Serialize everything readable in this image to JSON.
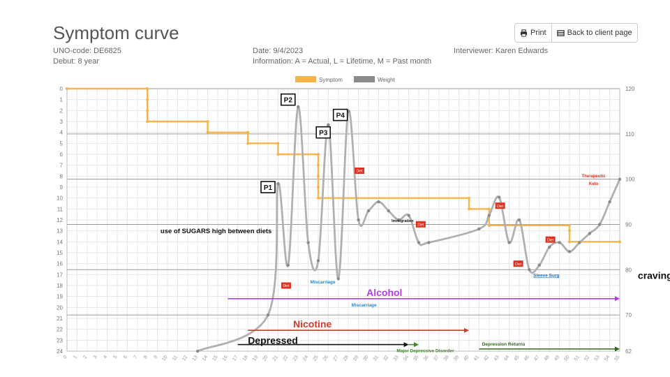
{
  "header": {
    "title": "Symptom curve",
    "uno_code": "UNO-code: DE6825",
    "debut": "Debut: 8 year",
    "date": "Date: 9/4/2023",
    "information": "Information: A = Actual, L = Lifetime, M = Past month",
    "interviewer": "Interviewer: Karen Edwards"
  },
  "toolbar": {
    "print_label": "Print",
    "back_label": "Back to client page",
    "print_icon": "printer-icon",
    "back_icon": "table-icon"
  },
  "chart_data": {
    "type": "line",
    "x": [
      0,
      1,
      2,
      3,
      4,
      5,
      6,
      7,
      8,
      9,
      10,
      11,
      12,
      13,
      14,
      15,
      16,
      17,
      18,
      19,
      20,
      21,
      22,
      23,
      24,
      25,
      26,
      27,
      28,
      29,
      30,
      31,
      32,
      33,
      34,
      35,
      36,
      37,
      38,
      39,
      40,
      41,
      42,
      43,
      44,
      45,
      46,
      47,
      48,
      49,
      50,
      51,
      52,
      53,
      54,
      55
    ],
    "xlim": [
      0,
      55
    ],
    "y_left_ticks": [
      0,
      1,
      2,
      3,
      4,
      5,
      6,
      7,
      8,
      9,
      10,
      11,
      12,
      13,
      14,
      15,
      16,
      17,
      18,
      19,
      20,
      21,
      22,
      23,
      24
    ],
    "ylim_left": [
      0,
      24
    ],
    "y_right_ticks": [
      120,
      110,
      100,
      90,
      80,
      70,
      62
    ],
    "ylim_right": [
      62,
      120
    ],
    "colors": {
      "symptom": "#f7b44a",
      "weight": "#8a8a8a",
      "alcohol": "#b43ce0",
      "nicotine": "#d63a2a",
      "depressed": "#111111",
      "green": "#3e8a2a",
      "tag": "#e0301e",
      "blue": "#1a8ad4"
    },
    "legend": [
      {
        "name": "Symptom",
        "color": "#f7b44a"
      },
      {
        "name": "Weight",
        "color": "#8a8a8a"
      }
    ],
    "series": [
      {
        "name": "Symptom",
        "axis": "left",
        "step": true,
        "points": [
          [
            0,
            0
          ],
          [
            8,
            0
          ],
          [
            8,
            1
          ],
          [
            8,
            2
          ],
          [
            8,
            3
          ],
          [
            14,
            3
          ],
          [
            14,
            4
          ],
          [
            18,
            4
          ],
          [
            18,
            5
          ],
          [
            21,
            5
          ],
          [
            21,
            6
          ],
          [
            25,
            6
          ],
          [
            25,
            7
          ],
          [
            25,
            8
          ],
          [
            25,
            9
          ],
          [
            25,
            10
          ],
          [
            40,
            10
          ],
          [
            40,
            11
          ],
          [
            42,
            11
          ],
          [
            42,
            12.5
          ],
          [
            50,
            12.5
          ],
          [
            50,
            13
          ],
          [
            50,
            14
          ],
          [
            55,
            14
          ]
        ]
      },
      {
        "name": "Weight",
        "axis": "right",
        "points": [
          [
            13,
            62
          ],
          [
            20,
            70
          ],
          [
            21,
            99
          ],
          [
            22,
            81
          ],
          [
            23,
            116
          ],
          [
            24,
            86
          ],
          [
            25,
            82
          ],
          [
            26,
            112
          ],
          [
            27,
            78
          ],
          [
            28,
            115
          ],
          [
            29,
            91
          ],
          [
            30,
            93
          ],
          [
            31,
            95
          ],
          [
            32,
            93
          ],
          [
            33,
            91
          ],
          [
            34,
            92
          ],
          [
            35,
            86
          ],
          [
            36,
            86
          ],
          [
            41,
            89
          ],
          [
            42,
            92
          ],
          [
            43,
            96
          ],
          [
            44,
            86
          ],
          [
            45,
            91
          ],
          [
            46,
            80
          ],
          [
            47,
            81
          ],
          [
            48,
            85
          ],
          [
            49,
            86
          ],
          [
            50,
            84
          ],
          [
            51,
            86
          ],
          [
            52,
            88
          ],
          [
            53,
            90
          ],
          [
            54,
            95
          ],
          [
            55,
            100
          ]
        ]
      }
    ],
    "timelines": [
      {
        "label": "Alcohol",
        "start": 16,
        "end": 55,
        "row": 19.2,
        "color": "#b43ce0"
      },
      {
        "label": "Nicotine",
        "start": 18,
        "end": 40,
        "row": 22.1,
        "color": "#d63a2a"
      },
      {
        "label": "Depressed",
        "start": 17,
        "end": 34,
        "row": 23.4,
        "color": "#111111"
      },
      {
        "label": "Major Depressive Disorder",
        "start": 34,
        "end": 35,
        "row": 23.4,
        "color": "#3e8a2a"
      },
      {
        "label": "Depression Returns",
        "start": 41,
        "end": 55,
        "row": 23.8,
        "color": "#2a6a1a"
      }
    ],
    "peak_labels": [
      {
        "label": "P1",
        "x": 20,
        "y": 9
      },
      {
        "label": "P2",
        "x": 22,
        "y": 1
      },
      {
        "label": "P3",
        "x": 25.5,
        "y": 4
      },
      {
        "label": "P4",
        "x": 27.2,
        "y": 2.4
      }
    ],
    "event_tags": [
      {
        "label": "Diet",
        "x": 21.8,
        "y": 18
      },
      {
        "label": "Diet",
        "x": 29.1,
        "y": 7.5
      },
      {
        "label": "Diet",
        "x": 35.2,
        "y": 12.4
      },
      {
        "label": "Diet",
        "x": 43.1,
        "y": 10.7
      },
      {
        "label": "Diet",
        "x": 44.9,
        "y": 16
      },
      {
        "label": "Diet",
        "x": 48.1,
        "y": 13.8
      }
    ],
    "annotations": [
      {
        "text": "use of SUGARS high between diets",
        "x": 9.3,
        "y": 13.2,
        "style": "dark"
      },
      {
        "text": "Miscarriage",
        "x": 24.2,
        "y": 17.8,
        "style": "blue"
      },
      {
        "text": "Miscarriage",
        "x": 28.3,
        "y": 19.9,
        "style": "blue"
      },
      {
        "text": "Immigration",
        "x": 32.3,
        "y": 12.2,
        "style": "small"
      },
      {
        "text": "Sleeve Surg",
        "x": 46.4,
        "y": 17.2,
        "style": "link"
      },
      {
        "text": "Therapeutic",
        "x": 52.4,
        "y": 8.1,
        "style": "red"
      },
      {
        "text": "Keto",
        "x": 52.4,
        "y": 8.8,
        "style": "red"
      },
      {
        "text": "cravings!!",
        "x": 56.8,
        "y": 17.4,
        "style": "big"
      }
    ]
  }
}
